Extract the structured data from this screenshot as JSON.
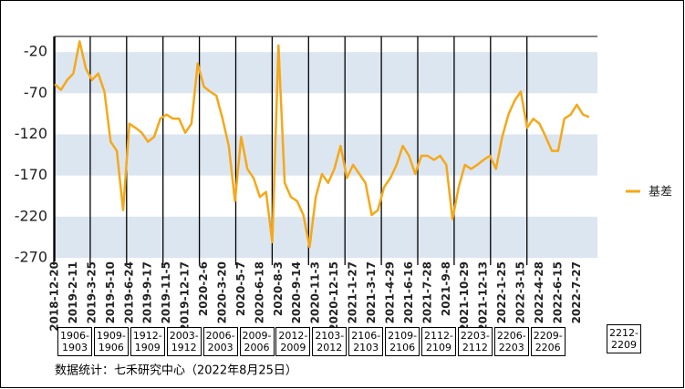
{
  "chart_data": {
    "type": "line",
    "categories": [
      "2018-12-20",
      null,
      null,
      "2019-2-11",
      null,
      null,
      "2019-3-25",
      null,
      null,
      "2019-5-10",
      null,
      null,
      "2019-6-24",
      null,
      null,
      "2019-9-17",
      null,
      null,
      "2019-11-5",
      null,
      null,
      "2019-12-17",
      null,
      null,
      "2020-2-6",
      null,
      null,
      "2020-3-20",
      null,
      null,
      "2020-5-7",
      null,
      null,
      "2020-6-18",
      null,
      null,
      "2020-8-3",
      null,
      null,
      "2020-9-14",
      null,
      null,
      "2020-11-3",
      null,
      null,
      "2020-12-15",
      null,
      null,
      "2021-1-27",
      null,
      null,
      "2021-3-17",
      null,
      null,
      "2021-4-29",
      null,
      null,
      "2021-6-16",
      null,
      null,
      "2021-7-28",
      null,
      null,
      "2021-9-8",
      null,
      null,
      "2021-10-29",
      null,
      null,
      "2021-12-13",
      null,
      null,
      "2022-1-25",
      null,
      null,
      "2022-3-15",
      null,
      null,
      "2022-4-28",
      null,
      null,
      "2022-6-15",
      null,
      null,
      "2022-7-27",
      null,
      null
    ],
    "series": [
      {
        "name": "基差",
        "color": "#f5a818",
        "values": [
          -59,
          -66,
          -54,
          -46,
          -7,
          -40,
          -54,
          -46,
          -68,
          -129,
          -140,
          -212,
          -107,
          -112,
          -118,
          -129,
          -123,
          -101,
          -96,
          -101,
          -101,
          -118,
          -107,
          -34,
          -62,
          -68,
          -73,
          -101,
          -134,
          -201,
          -123,
          -162,
          -173,
          -196,
          -190,
          -251,
          -12,
          -179,
          -196,
          -201,
          -218,
          -257,
          -196,
          -168,
          -179,
          -162,
          -134,
          -173,
          -157,
          -168,
          -179,
          -218,
          -212,
          -184,
          -173,
          -157,
          -134,
          -146,
          -168,
          -146,
          -146,
          -151,
          -146,
          -157,
          -223,
          -184,
          -157,
          -162,
          -157,
          -151,
          -146,
          -162,
          -123,
          -96,
          -79,
          -68,
          -112,
          -101,
          -107,
          -123,
          -140,
          -140,
          -101,
          -96,
          -84,
          -96,
          -99
        ]
      }
    ],
    "ylim": [
      -270,
      -1
    ],
    "yticks": [
      -20,
      -70,
      -120,
      -170,
      -220,
      -270
    ],
    "banded_grid": true,
    "contracts": [
      "1906-1903",
      "1909-1906",
      "1912-1909",
      "2003-1912",
      "2006-2003",
      "2009-2006",
      "2012-2009",
      "2103-2012",
      "2106-2103",
      "2109-2106",
      "2112-2109",
      "2203-2112",
      "2206-2203",
      "2209-2206",
      "2212-2209"
    ],
    "source": "数据统计：七禾研究中心（2022年8月25日）"
  }
}
